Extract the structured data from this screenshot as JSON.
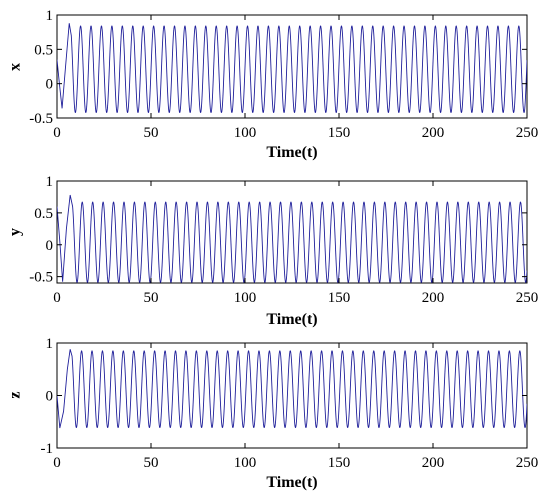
{
  "chart_data": [
    {
      "type": "line",
      "ylabel": "x",
      "xlabel": "Time(t)",
      "xlim": [
        0,
        250
      ],
      "ylim": [
        -0.5,
        1
      ],
      "xticks": [
        "0",
        "50",
        "100",
        "150",
        "200",
        "250"
      ],
      "yticks": [
        "-0.5",
        "0",
        "0.5",
        "1"
      ],
      "series": [
        {
          "color": "#1f1f9a",
          "waveform": "sinusoid",
          "t_start": 0,
          "t_end": 250,
          "period": 5.55,
          "center": 0.21,
          "amplitude": 0.63,
          "transient": [
            [
              0,
              0.35
            ],
            [
              1.2,
              0.02
            ],
            [
              2.7,
              -0.36
            ],
            [
              4.4,
              0.2
            ],
            [
              6.5,
              0.88
            ],
            [
              7.6,
              0.7
            ]
          ]
        }
      ]
    },
    {
      "type": "line",
      "ylabel": "y",
      "xlabel": "Time(t)",
      "xlim": [
        0,
        250
      ],
      "ylim": [
        -0.6,
        1
      ],
      "xticks": [
        "0",
        "50",
        "100",
        "150",
        "200",
        "250"
      ],
      "yticks": [
        "-0.5",
        "0",
        "0.5",
        "1"
      ],
      "series": [
        {
          "color": "#1f1f9a",
          "waveform": "sinusoid",
          "t_start": 0,
          "t_end": 250,
          "period": 5.55,
          "center": 0.04,
          "amplitude": 0.63,
          "transient": [
            [
              0,
              0.6
            ],
            [
              1.5,
              0.05
            ],
            [
              3.0,
              -0.58
            ],
            [
              5.0,
              0.25
            ],
            [
              7.0,
              0.78
            ],
            [
              8.3,
              0.6
            ]
          ]
        }
      ]
    },
    {
      "type": "line",
      "ylabel": "z",
      "xlabel": "Time(t)",
      "xlim": [
        0,
        250
      ],
      "ylim": [
        -1,
        1
      ],
      "xticks": [
        "0",
        "50",
        "100",
        "150",
        "200",
        "250"
      ],
      "yticks": [
        "-1",
        "0",
        "1"
      ],
      "series": [
        {
          "color": "#1f1f9a",
          "waveform": "sinusoid",
          "t_start": 0,
          "t_end": 250,
          "period": 5.55,
          "center": 0.12,
          "amplitude": 0.73,
          "transient": [
            [
              0,
              0.0
            ],
            [
              1.5,
              -0.62
            ],
            [
              3.5,
              -0.3
            ],
            [
              5.5,
              0.5
            ],
            [
              7.0,
              0.88
            ],
            [
              8.0,
              0.75
            ]
          ]
        }
      ]
    }
  ]
}
